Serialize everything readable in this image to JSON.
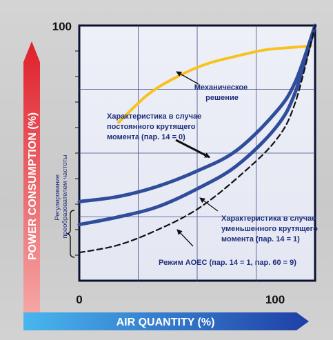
{
  "chart_data": {
    "type": "line",
    "xlabel": "AIR QUANTITY (%)",
    "ylabel": "POWER CONSUMPTION (%)",
    "x_ticks": [
      "0",
      "100"
    ],
    "y_ticks": [
      "100"
    ],
    "xlim": [
      0,
      120
    ],
    "ylim": [
      0,
      100
    ],
    "grid": true,
    "side_note": "Регулирование преобразователем частоты",
    "series": [
      {
        "label": "Механическое решение",
        "color": "#f8c21e",
        "style": "solid",
        "x": [
          20,
          35,
          50,
          65,
          80,
          95,
          110,
          118
        ],
        "y": [
          62,
          73,
          80,
          85,
          88,
          90.5,
          91.5,
          92
        ]
      },
      {
        "label": "Характеристика в случае постоянного крутящего момента (пар. 14 = 0)",
        "color": "#2f4d9a",
        "style": "solid",
        "x": [
          0,
          20,
          40,
          60,
          80,
          100,
          110,
          120
        ],
        "y": [
          31,
          33,
          37,
          43,
          51,
          66,
          78,
          100
        ]
      },
      {
        "label": "Характеристика в случае уменьшенного крутящего момента (пар. 14 = 1)",
        "color": "#2f4d9a",
        "style": "solid",
        "x": [
          0,
          20,
          40,
          60,
          80,
          100,
          110,
          120
        ],
        "y": [
          22,
          25,
          29,
          36,
          45,
          60,
          74,
          100
        ]
      },
      {
        "label": "Режим АОЕС (пар. 14 = 1, пар. 60 = 9)",
        "color": "#111111",
        "style": "dashed",
        "x": [
          0,
          20,
          40,
          60,
          80,
          100,
          110,
          120
        ],
        "y": [
          11,
          14,
          20,
          28,
          40,
          55,
          70,
          100
        ]
      }
    ]
  }
}
